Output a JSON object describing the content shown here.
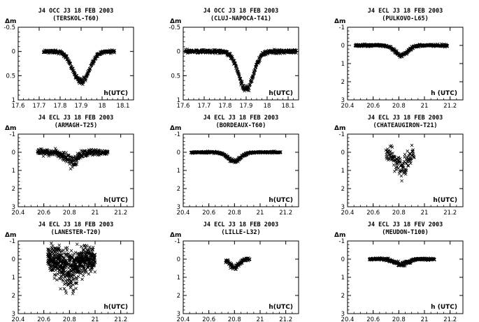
{
  "chart_data": [
    {
      "type": "scatter",
      "title": "J4 OCC J3 18 FEB 2003",
      "subtitle": "(TERSKOL-T60)",
      "ylabel": "Δm",
      "xlabel": "h(UTC)",
      "xlim": [
        17.6,
        18.15
      ],
      "ylim": [
        1,
        -0.5
      ],
      "xticks": [
        "17.6",
        "17.7",
        "17.8",
        "17.9",
        "18",
        "18.1"
      ],
      "yticks": [
        "-0.5",
        "0",
        "0.5",
        "1"
      ],
      "curve": {
        "x_start": 17.72,
        "x_end": 18.06,
        "center": 17.9,
        "depth": 0.63,
        "width": 0.055
      },
      "noise": 0.025,
      "color": "#000000"
    },
    {
      "type": "scatter",
      "title": "J4 OCC J3 18 FEB 2003",
      "subtitle": "(CLUJ-NAPOCA-T41)",
      "ylabel": "Δm",
      "xlabel": "h(UTC)",
      "xlim": [
        17.6,
        18.15
      ],
      "ylim": [
        1,
        -0.5
      ],
      "xticks": [
        "17.6",
        "17.7",
        "17.8",
        "17.9",
        "18",
        "18.1"
      ],
      "yticks": [
        "-0.5",
        "0",
        "0.5",
        "1"
      ],
      "curve": {
        "x_start": 17.61,
        "x_end": 18.14,
        "center": 17.9,
        "depth": 0.78,
        "width": 0.05
      },
      "noise": 0.03,
      "color": "#000000"
    },
    {
      "type": "scatter",
      "title": "J4 ECL J3 18 FEB 2003",
      "subtitle": "(PULKOVO-L65)",
      "ylabel": "Δm",
      "xlabel": "h (UTC)",
      "xlim": [
        20.4,
        21.3
      ],
      "ylim": [
        3,
        -1
      ],
      "xticks": [
        "20.4",
        "20.6",
        "20.8",
        "21",
        "21.2"
      ],
      "yticks": [
        "-1",
        "0",
        "1",
        "2",
        "3"
      ],
      "curve": {
        "x_start": 20.46,
        "x_end": 21.18,
        "center": 20.82,
        "depth": 0.55,
        "width": 0.07
      },
      "noise": 0.05,
      "color": "#000000"
    },
    {
      "type": "scatter",
      "title": "J4 ECL J3 18 FEB 2003",
      "subtitle": "(ARMAGH-T25)",
      "ylabel": "Δm",
      "xlabel": "h(UTC)",
      "xlim": [
        20.4,
        21.3
      ],
      "ylim": [
        3,
        -1
      ],
      "xticks": [
        "20.4",
        "20.6",
        "20.8",
        "21",
        "21.2"
      ],
      "yticks": [
        "-1",
        "0",
        "1",
        "2",
        "3"
      ],
      "curve": {
        "x_start": 20.55,
        "x_end": 21.1,
        "center": 20.82,
        "depth": 0.55,
        "width": 0.07
      },
      "noise": 0.13,
      "color": "#000000"
    },
    {
      "type": "scatter",
      "title": "J4 ECL J3 18 FEB 2003",
      "subtitle": "(BORDEAUX-T60)",
      "ylabel": "Δm",
      "xlabel": "h(UTC)",
      "xlim": [
        20.4,
        21.3
      ],
      "ylim": [
        3,
        -1
      ],
      "xticks": [
        "20.4",
        "20.6",
        "20.8",
        "21",
        "21.2"
      ],
      "yticks": [
        "-1",
        "0",
        "1",
        "2",
        "3"
      ],
      "curve": {
        "x_start": 20.46,
        "x_end": 21.16,
        "center": 20.8,
        "depth": 0.5,
        "width": 0.07
      },
      "noise": 0.04,
      "color": "#000000"
    },
    {
      "type": "scatter",
      "title": "J4 ECL J3 18 FEB 2003",
      "subtitle": "(CHATEAUGIRON-T21)",
      "ylabel": "Δm",
      "xlabel": "h(UTC)",
      "xlim": [
        20.4,
        21.3
      ],
      "ylim": [
        3,
        -1
      ],
      "xticks": [
        "20.4",
        "20.6",
        "20.8",
        "21",
        "21.2"
      ],
      "yticks": [
        "-1",
        "0",
        "1",
        "2",
        "3"
      ],
      "curve": {
        "x_start": 20.7,
        "x_end": 20.92,
        "center": 20.82,
        "depth": 0.9,
        "width": 0.06
      },
      "noise": 0.28,
      "color": "#000000"
    },
    {
      "type": "scatter",
      "title": "J4 ECL J3 18 FEB 2003",
      "subtitle": "(LANESTER-T20)",
      "ylabel": "Δm",
      "xlabel": "h(UTC)",
      "xlim": [
        20.4,
        21.3
      ],
      "ylim": [
        3,
        -1
      ],
      "xticks": [
        "20.4",
        "20.6",
        "20.8",
        "21",
        "21.2"
      ],
      "yticks": [
        "-1",
        "0",
        "1",
        "2",
        "3"
      ],
      "curve": {
        "x_start": 20.63,
        "x_end": 21.0,
        "center": 20.8,
        "depth": 0.7,
        "width": 0.07
      },
      "noise": 0.5,
      "color": "#000000"
    },
    {
      "type": "scatter",
      "title": "J4 ECL J3 18 FEB 2003",
      "subtitle": "(LILLE-L32)",
      "ylabel": "Δm",
      "xlabel": "h(UTC)",
      "xlim": [
        20.4,
        21.3
      ],
      "ylim": [
        3,
        -1
      ],
      "xticks": [
        "20.4",
        "20.6",
        "20.8",
        "21",
        "21.2"
      ],
      "yticks": [
        "-1",
        "0",
        "1",
        "2",
        "3"
      ],
      "curve": {
        "x_start": 20.73,
        "x_end": 20.92,
        "center": 20.8,
        "depth": 0.45,
        "width": 0.05
      },
      "noise": 0.06,
      "color": "#000000"
    },
    {
      "type": "scatter",
      "title": "J4 ECL J3 18 FEV 2003",
      "subtitle": "(MEUDON-T100)",
      "ylabel": "Δm",
      "xlabel": "h (UTC)",
      "xlim": [
        20.4,
        21.3
      ],
      "ylim": [
        3,
        -1
      ],
      "xticks": [
        "20.4",
        "20.6",
        "20.8",
        "21",
        "21.2"
      ],
      "yticks": [
        "-1",
        "0",
        "1",
        "2",
        "3"
      ],
      "curve": {
        "x_start": 20.57,
        "x_end": 21.08,
        "center": 20.82,
        "depth": 0.3,
        "width": 0.07
      },
      "noise": 0.05,
      "color": "#000000"
    }
  ]
}
